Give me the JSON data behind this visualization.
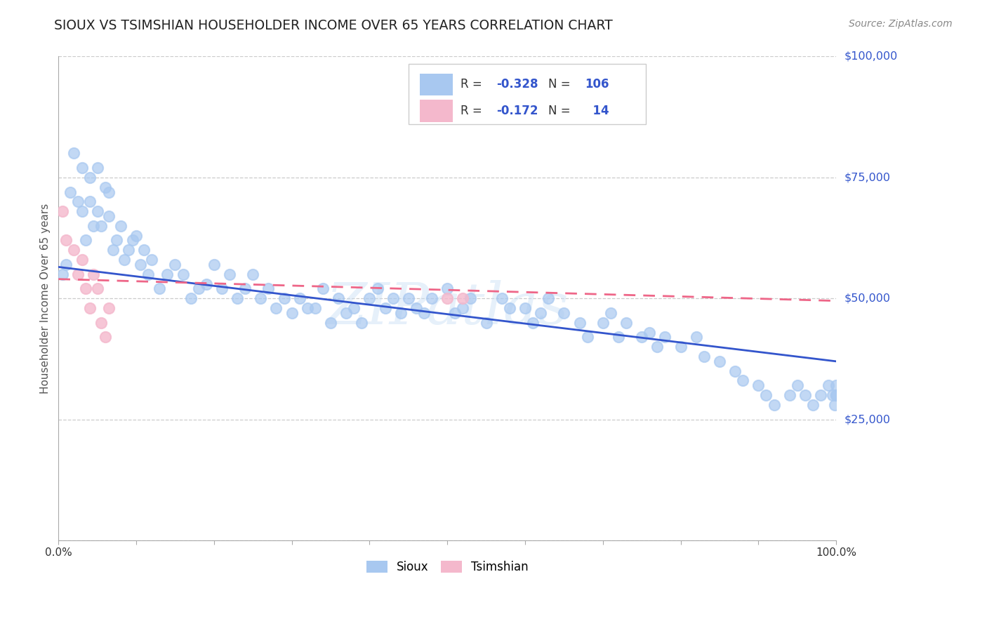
{
  "title": "SIOUX VS TSIMSHIAN HOUSEHOLDER INCOME OVER 65 YEARS CORRELATION CHART",
  "source": "Source: ZipAtlas.com",
  "ylabel": "Householder Income Over 65 years",
  "xlim": [
    0,
    1
  ],
  "ylim": [
    0,
    100000
  ],
  "yticks": [
    0,
    25000,
    50000,
    75000,
    100000
  ],
  "ytick_labels": [
    "",
    "$25,000",
    "$50,000",
    "$75,000",
    "$100,000"
  ],
  "sioux_color": "#a8c8f0",
  "tsimshian_color": "#f4b8cc",
  "sioux_line_color": "#3355cc",
  "tsimshian_line_color": "#ee6688",
  "sioux_R": -0.328,
  "sioux_N": 106,
  "tsimshian_R": -0.172,
  "tsimshian_N": 14,
  "watermark": "ZIPatlas",
  "background_color": "#ffffff",
  "grid_color": "#cccccc",
  "sioux_x": [
    0.005,
    0.01,
    0.015,
    0.02,
    0.025,
    0.03,
    0.03,
    0.035,
    0.04,
    0.04,
    0.045,
    0.05,
    0.05,
    0.055,
    0.06,
    0.065,
    0.065,
    0.07,
    0.075,
    0.08,
    0.085,
    0.09,
    0.095,
    0.1,
    0.105,
    0.11,
    0.115,
    0.12,
    0.13,
    0.14,
    0.15,
    0.16,
    0.17,
    0.18,
    0.19,
    0.2,
    0.21,
    0.22,
    0.23,
    0.24,
    0.25,
    0.26,
    0.27,
    0.28,
    0.29,
    0.3,
    0.31,
    0.32,
    0.33,
    0.34,
    0.35,
    0.36,
    0.37,
    0.38,
    0.39,
    0.4,
    0.41,
    0.42,
    0.43,
    0.44,
    0.45,
    0.46,
    0.47,
    0.48,
    0.5,
    0.51,
    0.52,
    0.53,
    0.55,
    0.57,
    0.58,
    0.6,
    0.61,
    0.62,
    0.63,
    0.65,
    0.67,
    0.68,
    0.7,
    0.71,
    0.72,
    0.73,
    0.75,
    0.76,
    0.77,
    0.78,
    0.8,
    0.82,
    0.83,
    0.85,
    0.87,
    0.88,
    0.9,
    0.91,
    0.92,
    0.94,
    0.95,
    0.96,
    0.97,
    0.98,
    0.99,
    0.995,
    0.998,
    1.0,
    1.0,
    1.0
  ],
  "sioux_y": [
    55000,
    57000,
    72000,
    80000,
    70000,
    77000,
    68000,
    62000,
    75000,
    70000,
    65000,
    77000,
    68000,
    65000,
    73000,
    67000,
    72000,
    60000,
    62000,
    65000,
    58000,
    60000,
    62000,
    63000,
    57000,
    60000,
    55000,
    58000,
    52000,
    55000,
    57000,
    55000,
    50000,
    52000,
    53000,
    57000,
    52000,
    55000,
    50000,
    52000,
    55000,
    50000,
    52000,
    48000,
    50000,
    47000,
    50000,
    48000,
    48000,
    52000,
    45000,
    50000,
    47000,
    48000,
    45000,
    50000,
    52000,
    48000,
    50000,
    47000,
    50000,
    48000,
    47000,
    50000,
    52000,
    47000,
    48000,
    50000,
    45000,
    50000,
    48000,
    48000,
    45000,
    47000,
    50000,
    47000,
    45000,
    42000,
    45000,
    47000,
    42000,
    45000,
    42000,
    43000,
    40000,
    42000,
    40000,
    42000,
    38000,
    37000,
    35000,
    33000,
    32000,
    30000,
    28000,
    30000,
    32000,
    30000,
    28000,
    30000,
    32000,
    30000,
    28000,
    30000,
    32000,
    30000
  ],
  "tsimshian_x": [
    0.005,
    0.01,
    0.02,
    0.025,
    0.03,
    0.035,
    0.04,
    0.045,
    0.05,
    0.055,
    0.06,
    0.065,
    0.5,
    0.52
  ],
  "tsimshian_y": [
    68000,
    62000,
    60000,
    55000,
    58000,
    52000,
    48000,
    55000,
    52000,
    45000,
    42000,
    48000,
    50000,
    50000
  ],
  "sioux_trend_x0": 0.0,
  "sioux_trend_y0": 56500,
  "sioux_trend_x1": 1.0,
  "sioux_trend_y1": 37000,
  "tsimshian_trend_x0": 0.0,
  "tsimshian_trend_y0": 54000,
  "tsimshian_trend_x1": 1.0,
  "tsimshian_trend_y1": 49500
}
